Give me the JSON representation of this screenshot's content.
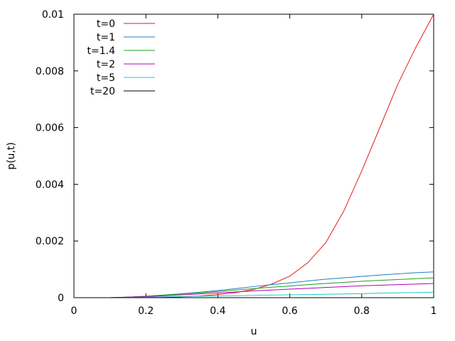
{
  "chart_data": {
    "type": "line",
    "xlabel": "u",
    "ylabel": "p(u,t)",
    "xlim": [
      0,
      1
    ],
    "ylim": [
      0,
      0.01
    ],
    "x_ticks": [
      "0",
      "0.2",
      "0.4",
      "0.6",
      "0.8",
      "1"
    ],
    "y_ticks": [
      "0",
      "0.002",
      "0.004",
      "0.006",
      "0.008",
      "0.01"
    ],
    "legend_position": "top-left",
    "grid": false,
    "series": [
      {
        "name": "t=0",
        "color": "#e41a1c",
        "x": [
          0.1,
          0.15,
          0.2,
          0.25,
          0.3,
          0.35,
          0.4,
          0.45,
          0.5,
          0.55,
          0.6,
          0.65,
          0.7,
          0.75,
          0.8,
          0.85,
          0.9,
          0.95,
          1.0
        ],
        "y": [
          0.0,
          0.0,
          0.0,
          1e-05,
          3e-05,
          6e-05,
          0.00011,
          0.00018,
          0.00029,
          0.00048,
          0.00076,
          0.00123,
          0.00194,
          0.00305,
          0.00447,
          0.00599,
          0.00752,
          0.00882,
          0.01
        ]
      },
      {
        "name": "t=1",
        "color": "#1f7fbf",
        "x": [
          0.1,
          0.15,
          0.2,
          0.25,
          0.3,
          0.35,
          0.4,
          0.45,
          0.5,
          0.55,
          0.6,
          0.65,
          0.7,
          0.75,
          0.8,
          0.85,
          0.9,
          0.95,
          1.0
        ],
        "y": [
          0.0,
          2e-05,
          5e-05,
          9e-05,
          0.00014,
          0.00019,
          0.00025,
          0.00032,
          0.00039,
          0.00046,
          0.00052,
          0.00059,
          0.00065,
          0.0007,
          0.00075,
          0.0008,
          0.00084,
          0.00088,
          0.00091
        ]
      },
      {
        "name": "t=1.4",
        "color": "#1fa01f",
        "x": [
          0.1,
          0.15,
          0.2,
          0.25,
          0.3,
          0.35,
          0.4,
          0.45,
          0.5,
          0.55,
          0.6,
          0.65,
          0.7,
          0.75,
          0.8,
          0.85,
          0.9,
          0.95,
          1.0
        ],
        "y": [
          0.0,
          2e-05,
          5e-05,
          9e-05,
          0.00013,
          0.00017,
          0.00022,
          0.00027,
          0.00032,
          0.00037,
          0.00041,
          0.00046,
          0.0005,
          0.00054,
          0.00058,
          0.00061,
          0.00064,
          0.00067,
          0.0007
        ]
      },
      {
        "name": "t=2",
        "color": "#b000b0",
        "x": [
          0.1,
          0.15,
          0.2,
          0.25,
          0.3,
          0.35,
          0.4,
          0.45,
          0.5,
          0.55,
          0.6,
          0.65,
          0.7,
          0.75,
          0.8,
          0.85,
          0.9,
          0.95,
          1.0
        ],
        "y": [
          0.0,
          2e-05,
          4e-05,
          7e-05,
          0.0001,
          0.00013,
          0.00017,
          0.0002,
          0.00024,
          0.00027,
          0.0003,
          0.00033,
          0.00036,
          0.00039,
          0.00042,
          0.00044,
          0.00046,
          0.00048,
          0.0005
        ]
      },
      {
        "name": "t=5",
        "color": "#20c8c8",
        "x": [
          0.1,
          0.15,
          0.2,
          0.25,
          0.3,
          0.35,
          0.4,
          0.45,
          0.5,
          0.55,
          0.6,
          0.65,
          0.7,
          0.75,
          0.8,
          0.85,
          0.9,
          0.95,
          1.0
        ],
        "y": [
          0.0,
          1e-05,
          2e-05,
          3e-05,
          4e-05,
          5e-05,
          6e-05,
          7e-05,
          8e-05,
          9e-05,
          0.0001,
          0.00011,
          0.00012,
          0.00013,
          0.00014,
          0.00016,
          0.00017,
          0.00018,
          0.00019
        ]
      },
      {
        "name": "t=20",
        "color": "#000000",
        "x": [
          0.1,
          0.2,
          0.3,
          0.4,
          0.5,
          0.6,
          0.7,
          0.8,
          0.9,
          1.0
        ],
        "y": [
          0.0,
          0.0,
          0.0,
          0.0,
          0.0,
          0.0,
          0.0,
          0.0,
          0.0,
          0.0
        ]
      }
    ]
  }
}
